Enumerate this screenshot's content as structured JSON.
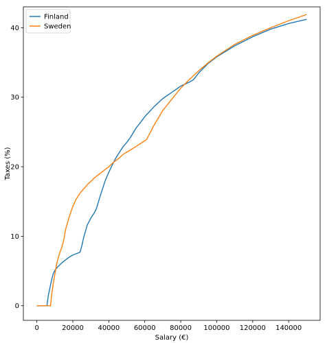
{
  "chart_data": {
    "type": "line",
    "title": "",
    "xlabel": "Salary (€)",
    "ylabel": "Taxes (%)",
    "xlim": [
      -7500,
      157500
    ],
    "ylim": [
      -2.1,
      43.0
    ],
    "xticks": [
      0,
      20000,
      40000,
      60000,
      80000,
      100000,
      120000,
      140000
    ],
    "xtick_labels": [
      "0",
      "20000",
      "40000",
      "60000",
      "80000",
      "100000",
      "120000",
      "140000"
    ],
    "yticks": [
      0,
      10,
      20,
      30,
      40
    ],
    "ytick_labels": [
      "0",
      "10",
      "20",
      "30",
      "40"
    ],
    "grid": false,
    "legend_position": "top-left",
    "series": [
      {
        "name": "Finland",
        "color": "#1f77b4",
        "points": [
          [
            0,
            0
          ],
          [
            5000,
            0
          ],
          [
            5600,
            0
          ],
          [
            6400,
            1.5
          ],
          [
            7200,
            2.5
          ],
          [
            8000,
            3.5
          ],
          [
            9000,
            4.5
          ],
          [
            10000,
            5.1
          ],
          [
            12000,
            5.7
          ],
          [
            14000,
            6.2
          ],
          [
            16000,
            6.6
          ],
          [
            18000,
            7.0
          ],
          [
            20000,
            7.3
          ],
          [
            22000,
            7.5
          ],
          [
            24000,
            7.7
          ],
          [
            25000,
            8.6
          ],
          [
            26000,
            9.8
          ],
          [
            28000,
            11.6
          ],
          [
            30000,
            12.6
          ],
          [
            32000,
            13.4
          ],
          [
            33000,
            13.9
          ],
          [
            35000,
            15.6
          ],
          [
            38000,
            18.0
          ],
          [
            40000,
            19.2
          ],
          [
            42000,
            20.3
          ],
          [
            44000,
            21.3
          ],
          [
            46000,
            22.1
          ],
          [
            48000,
            22.9
          ],
          [
            50000,
            23.5
          ],
          [
            52000,
            24.2
          ],
          [
            55000,
            25.5
          ],
          [
            58000,
            26.5
          ],
          [
            60000,
            27.2
          ],
          [
            65000,
            28.6
          ],
          [
            70000,
            29.8
          ],
          [
            75000,
            30.7
          ],
          [
            80000,
            31.6
          ],
          [
            85000,
            32.2
          ],
          [
            87000,
            32.5
          ],
          [
            90000,
            33.5
          ],
          [
            95000,
            34.8
          ],
          [
            100000,
            35.8
          ],
          [
            110000,
            37.4
          ],
          [
            120000,
            38.7
          ],
          [
            130000,
            39.8
          ],
          [
            140000,
            40.6
          ],
          [
            150000,
            41.2
          ]
        ]
      },
      {
        "name": "Sweden",
        "color": "#ff7f0e",
        "points": [
          [
            0,
            0
          ],
          [
            7000,
            0
          ],
          [
            7600,
            0
          ],
          [
            8200,
            1.5
          ],
          [
            9000,
            3.0
          ],
          [
            10000,
            4.5
          ],
          [
            11000,
            6.0
          ],
          [
            12000,
            7.0
          ],
          [
            13000,
            7.8
          ],
          [
            14000,
            8.5
          ],
          [
            15000,
            9.5
          ],
          [
            16000,
            11.0
          ],
          [
            18000,
            12.8
          ],
          [
            20000,
            14.3
          ],
          [
            22000,
            15.4
          ],
          [
            24000,
            16.2
          ],
          [
            26000,
            16.8
          ],
          [
            28000,
            17.4
          ],
          [
            30000,
            17.9
          ],
          [
            32000,
            18.4
          ],
          [
            35000,
            19.0
          ],
          [
            38000,
            19.6
          ],
          [
            40000,
            20.0
          ],
          [
            42000,
            20.5
          ],
          [
            44000,
            20.9
          ],
          [
            46000,
            21.3
          ],
          [
            48000,
            21.8
          ],
          [
            50000,
            22.1
          ],
          [
            52000,
            22.4
          ],
          [
            55000,
            22.9
          ],
          [
            58000,
            23.4
          ],
          [
            61000,
            23.9
          ],
          [
            63000,
            24.9
          ],
          [
            65000,
            25.9
          ],
          [
            68000,
            27.2
          ],
          [
            70000,
            28.1
          ],
          [
            75000,
            29.7
          ],
          [
            80000,
            31.3
          ],
          [
            85000,
            32.6
          ],
          [
            90000,
            33.8
          ],
          [
            95000,
            34.9
          ],
          [
            100000,
            35.9
          ],
          [
            110000,
            37.6
          ],
          [
            120000,
            38.9
          ],
          [
            130000,
            40.0
          ],
          [
            140000,
            41.0
          ],
          [
            150000,
            41.9
          ]
        ]
      }
    ]
  }
}
